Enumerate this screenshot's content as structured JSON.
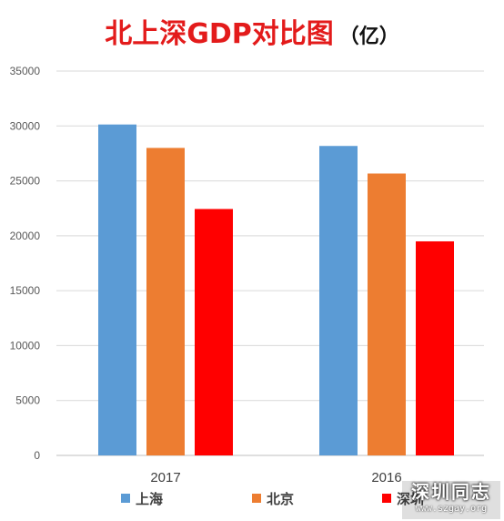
{
  "title": {
    "main": "北上深GDP对比图",
    "unit": "（亿）"
  },
  "colors": {
    "title": "#e31b1b",
    "上海": "#5b9bd5",
    "北京": "#ed7d31",
    "深圳": "#ff0000"
  },
  "chart_data": {
    "type": "bar",
    "title": "北上深GDP对比图（亿）",
    "categories": [
      "2017",
      "2016"
    ],
    "series": [
      {
        "name": "上海",
        "values": [
          30133,
          28179
        ],
        "color": "#5b9bd5"
      },
      {
        "name": "北京",
        "values": [
          28000,
          25669
        ],
        "color": "#ed7d31"
      },
      {
        "name": "深圳",
        "values": [
          22438,
          19493
        ],
        "color": "#ff0000"
      }
    ],
    "y_ticks": [
      "0",
      "5000",
      "10000",
      "15000",
      "20000",
      "25000",
      "30000",
      "35000"
    ],
    "ylim": [
      0,
      35000
    ],
    "grid": true,
    "legend_position": "bottom",
    "xlabel": "",
    "ylabel": ""
  },
  "watermark": {
    "brand": "深圳同志",
    "url": "www.szgay.org"
  }
}
